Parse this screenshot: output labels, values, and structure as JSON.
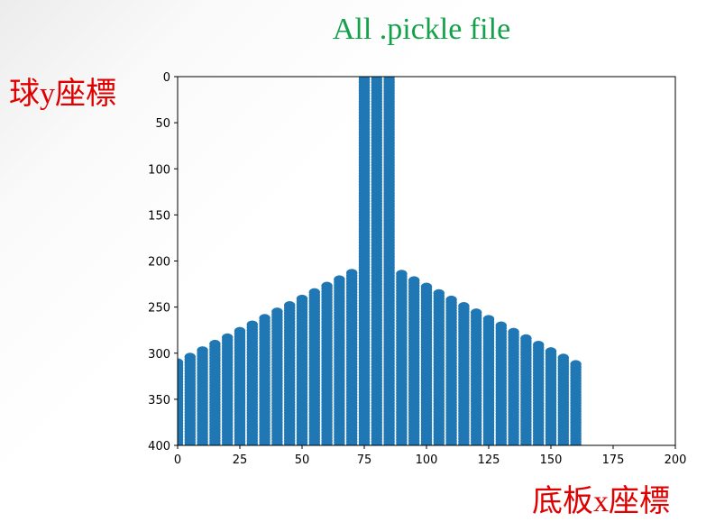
{
  "labels": {
    "title": "All .pickle file",
    "ylabel": "球y座標",
    "xlabel": "底板x座標"
  },
  "colors": {
    "series": "#1f77b4",
    "title": "#13a24a",
    "axis_label": "#e00000"
  },
  "chart_data": {
    "type": "scatter",
    "title": "All .pickle file",
    "xlabel": "底板x座標",
    "ylabel": "球y座標",
    "xlim": [
      0,
      200
    ],
    "ylim": [
      400,
      0
    ],
    "y_inverted": true,
    "grid": false,
    "xticks": [
      0,
      25,
      50,
      75,
      100,
      125,
      150,
      175,
      200
    ],
    "yticks": [
      0,
      50,
      100,
      150,
      200,
      250,
      300,
      350,
      400
    ],
    "columns": [
      {
        "x": 0,
        "y_min": 310,
        "y_max": 400
      },
      {
        "x": 5,
        "y_min": 304,
        "y_max": 400
      },
      {
        "x": 10,
        "y_min": 297,
        "y_max": 400
      },
      {
        "x": 15,
        "y_min": 290,
        "y_max": 400
      },
      {
        "x": 20,
        "y_min": 283,
        "y_max": 400
      },
      {
        "x": 25,
        "y_min": 276,
        "y_max": 400
      },
      {
        "x": 30,
        "y_min": 269,
        "y_max": 400
      },
      {
        "x": 35,
        "y_min": 262,
        "y_max": 400
      },
      {
        "x": 40,
        "y_min": 255,
        "y_max": 400
      },
      {
        "x": 45,
        "y_min": 248,
        "y_max": 400
      },
      {
        "x": 50,
        "y_min": 241,
        "y_max": 400
      },
      {
        "x": 55,
        "y_min": 234,
        "y_max": 400
      },
      {
        "x": 60,
        "y_min": 227,
        "y_max": 400
      },
      {
        "x": 65,
        "y_min": 220,
        "y_max": 400
      },
      {
        "x": 70,
        "y_min": 213,
        "y_max": 400
      },
      {
        "x": 75,
        "y_min": 0,
        "y_max": 400
      },
      {
        "x": 80,
        "y_min": 0,
        "y_max": 400
      },
      {
        "x": 85,
        "y_min": 0,
        "y_max": 400
      },
      {
        "x": 90,
        "y_min": 214,
        "y_max": 400
      },
      {
        "x": 95,
        "y_min": 221,
        "y_max": 400
      },
      {
        "x": 100,
        "y_min": 228,
        "y_max": 400
      },
      {
        "x": 105,
        "y_min": 235,
        "y_max": 400
      },
      {
        "x": 110,
        "y_min": 242,
        "y_max": 400
      },
      {
        "x": 115,
        "y_min": 249,
        "y_max": 400
      },
      {
        "x": 120,
        "y_min": 256,
        "y_max": 400
      },
      {
        "x": 125,
        "y_min": 263,
        "y_max": 400
      },
      {
        "x": 130,
        "y_min": 270,
        "y_max": 400
      },
      {
        "x": 135,
        "y_min": 277,
        "y_max": 400
      },
      {
        "x": 140,
        "y_min": 284,
        "y_max": 400
      },
      {
        "x": 145,
        "y_min": 291,
        "y_max": 400
      },
      {
        "x": 150,
        "y_min": 298,
        "y_max": 400
      },
      {
        "x": 155,
        "y_min": 305,
        "y_max": 400
      },
      {
        "x": 160,
        "y_min": 312,
        "y_max": 400
      }
    ]
  }
}
